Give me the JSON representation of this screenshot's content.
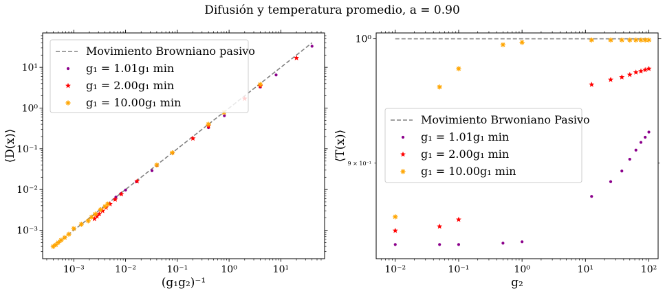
{
  "suptitle": "Difusión y temperatura promedio, a = 0.90",
  "chart_data": [
    {
      "type": "scatter",
      "xscale": "log",
      "yscale": "log",
      "xlabel": "(g₁g₂)⁻¹",
      "ylabel": "⟨D(x)⟩",
      "xlim": [
        0.00025,
        70
      ],
      "ylim": [
        0.0002,
        70
      ],
      "xticks": [
        0.001,
        0.01,
        0.1,
        1,
        10
      ],
      "xtick_labels": [
        "10⁻³",
        "10⁻²",
        "10⁻¹",
        "10⁰",
        "10¹"
      ],
      "yticks": [
        0.001,
        0.01,
        0.1,
        1,
        10
      ],
      "ytick_labels": [
        "10⁻³",
        "10⁻²",
        "10⁻¹",
        "10⁰",
        "10¹"
      ],
      "legend_position": "upper-left",
      "reference_line": {
        "name": "Movimiento Browniano pasivo",
        "style": "dashed",
        "color": "#808080",
        "x": [
          0.0004,
          40
        ],
        "y": [
          0.0004,
          40
        ]
      },
      "series": [
        {
          "name": "g₁ = 1.01g₁ min",
          "marker": "dot",
          "color": "#8b008b",
          "x": [
            0.0065,
            0.0081,
            0.01,
            0.0162,
            0.0324,
            0.0404,
            0.081,
            0.4,
            0.81,
            4.0,
            8.1,
            40
          ],
          "y": [
            0.0065,
            0.0079,
            0.0097,
            0.0155,
            0.029,
            0.039,
            0.079,
            0.33,
            0.65,
            3.3,
            6.5,
            33
          ]
        },
        {
          "name": "g₁ = 2.00g₁ min",
          "marker": "star",
          "color": "#ff0000",
          "x": [
            0.0025,
            0.0028,
            0.0031,
            0.0036,
            0.0042,
            0.005,
            0.0063,
            0.0083,
            0.0167,
            0.2,
            0.4,
            2.0,
            4.0,
            20
          ],
          "y": [
            0.0019,
            0.0022,
            0.0025,
            0.003,
            0.0036,
            0.0044,
            0.0057,
            0.0077,
            0.016,
            0.18,
            0.36,
            1.7,
            3.5,
            17
          ]
        },
        {
          "name": "g₁ = 10.00g₁ min",
          "marker": "plus",
          "color": "#ffa500",
          "x": [
            0.0004,
            0.00045,
            0.0005,
            0.00057,
            0.00067,
            0.0008,
            0.001,
            0.0014,
            0.0019,
            0.0022,
            0.0026,
            0.0033,
            0.004,
            0.0045,
            0.04,
            0.08,
            0.4,
            0.8,
            4.0
          ],
          "y": [
            0.0004,
            0.00044,
            0.0005,
            0.00057,
            0.00066,
            0.0008,
            0.0011,
            0.0014,
            0.0017,
            0.0021,
            0.0025,
            0.0032,
            0.0038,
            0.0044,
            0.04,
            0.08,
            0.4,
            0.78,
            3.8
          ]
        }
      ]
    },
    {
      "type": "scatter",
      "xscale": "log",
      "yscale": "log",
      "xlabel": "g₂",
      "ylabel": "⟨T(x)⟩",
      "xlim": [
        0.005,
        140
      ],
      "ylim": [
        0.83,
        1.005
      ],
      "xticks": [
        0.01,
        0.1,
        1,
        10,
        100
      ],
      "xtick_labels": [
        "10⁻²",
        "10⁻¹",
        "10⁰",
        "10¹",
        "10²"
      ],
      "yticks": [
        1.0
      ],
      "ytick_labels": [
        "10⁰"
      ],
      "yminor_ticks": [
        0.9
      ],
      "yminor_labels": [
        "9 × 10⁻¹"
      ],
      "legend_position": "center-left",
      "reference_line": {
        "name": "Movimiento Brwoniano Pasivo",
        "style": "dashed",
        "color": "#808080",
        "x": [
          0.01,
          100
        ],
        "y": [
          1.0,
          1.0
        ]
      },
      "series": [
        {
          "name": "g₁ = 1.01g₁ min",
          "marker": "dot",
          "color": "#8b008b",
          "x": [
            0.01,
            0.05,
            0.1,
            0.5,
            1,
            12.5,
            25,
            37.5,
            50,
            62.5,
            75,
            87.5,
            100
          ],
          "y": [
            0.84,
            0.84,
            0.84,
            0.841,
            0.842,
            0.875,
            0.886,
            0.894,
            0.903,
            0.91,
            0.916,
            0.92,
            0.924
          ]
        },
        {
          "name": "g₁ = 2.00g₁ min",
          "marker": "star",
          "color": "#ff0000",
          "x": [
            0.01,
            0.05,
            0.1,
            12.5,
            25,
            37.5,
            50,
            62.5,
            75,
            87.5,
            100
          ],
          "y": [
            0.85,
            0.853,
            0.858,
            0.962,
            0.966,
            0.968,
            0.97,
            0.972,
            0.973,
            0.974,
            0.975
          ]
        },
        {
          "name": "g₁ = 10.00g₁ min",
          "marker": "plus",
          "color": "#ffa500",
          "x": [
            0.01,
            0.05,
            0.1,
            0.5,
            1,
            12.5,
            25,
            37.5,
            50,
            62.5,
            75,
            87.5,
            100
          ],
          "y": [
            0.86,
            0.96,
            0.975,
            0.995,
            0.997,
            0.999,
            0.999,
            0.999,
            0.999,
            0.999,
            0.999,
            0.999,
            0.999
          ]
        }
      ]
    }
  ]
}
